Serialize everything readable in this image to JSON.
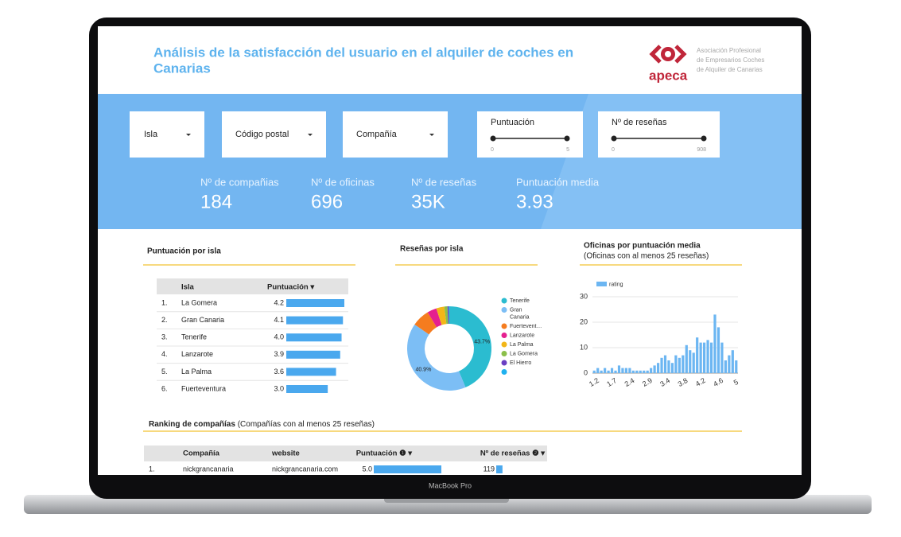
{
  "device": "MacBook Pro",
  "header": {
    "title_lines": [
      "Análisis de la satisfacción del usuario en el alquiler de coches en",
      "Canarias"
    ],
    "logo_text": "apeca",
    "org_lines": [
      "Asociación Profesional",
      "de Empresarios Coches",
      "de Alquiler de Canarias"
    ]
  },
  "filters": [
    "Isla",
    "Código postal",
    "Compañía"
  ],
  "sliders": [
    {
      "label": "Puntuación",
      "min": 0,
      "max": 5
    },
    {
      "label": "Nº de reseñas",
      "min": 0,
      "max": 908
    }
  ],
  "kpis": [
    {
      "label": "Nº de compañias",
      "value": 184
    },
    {
      "label": "Nº de oficinas",
      "value": 696
    },
    {
      "label": "Nº de reseñas",
      "value": "35K"
    },
    {
      "label": "Puntuación media",
      "value": 3.93
    }
  ],
  "island_table": {
    "title": "Puntuación por isla",
    "columns": [
      "Isla",
      "Puntuación ▾"
    ],
    "rows": [
      {
        "rank": "1.",
        "name": "La Gomera",
        "value": 4.2
      },
      {
        "rank": "2.",
        "name": "Gran Canaria",
        "value": 4.1
      },
      {
        "rank": "3.",
        "name": "Tenerife",
        "value": {
          "value": 4,
          "label": "4.0"
        }
      },
      {
        "rank": "4.",
        "name": "Lanzarote",
        "value": 3.9
      },
      {
        "rank": "5.",
        "name": "La Palma",
        "value": 3.6
      },
      {
        "rank": "6.",
        "name": "Fuerteventura",
        "value": {
          "value": 3,
          "label": "3.0"
        }
      }
    ]
  },
  "donut": {
    "type": "pie",
    "title": "Reseñas por isla",
    "categories": [
      "Tenerife",
      "Gran Canaria",
      "Fuertevent…",
      "Lanzarote",
      "La Palma",
      "La Gomera",
      "El Hierro",
      null
    ],
    "values": [
      43.7,
      40.9,
      6.8,
      3.6,
      3.1,
      1.2,
      0.5,
      0.2
    ],
    "value_labels": [
      "43.7%",
      "40.9%",
      null,
      null,
      null,
      null,
      null,
      null
    ],
    "colors": [
      "#2bbcd0",
      "#7cbef5",
      "#f57c1f",
      "#e5208f",
      "#f2b618",
      "#8bbf4a",
      "#6a3fc2",
      "#1fb1ef"
    ]
  },
  "chart_data": {
    "type": "bar",
    "title": "Oficinas por puntuación media",
    "subtitle": "(Oficinas con al menos 25 reseñas)",
    "categories": [
      "1.2",
      null,
      null,
      null,
      null,
      "1.7",
      null,
      null,
      null,
      null,
      "2.4",
      null,
      null,
      null,
      null,
      "2.9",
      null,
      null,
      null,
      null,
      "3.4",
      null,
      null,
      null,
      null,
      "3.8",
      null,
      null,
      null,
      null,
      "4.2",
      null,
      null,
      null,
      null,
      "4.6",
      null,
      null,
      null,
      null,
      "5"
    ],
    "series": [
      {
        "name": "rating",
        "color": "#6cb6f2",
        "values": [
          1,
          2,
          1,
          2,
          1,
          2,
          1,
          3,
          2,
          2,
          2,
          1,
          1,
          1,
          1,
          1,
          2,
          3,
          4,
          6,
          7,
          5,
          4,
          7,
          6,
          7,
          11,
          9,
          8,
          14,
          12,
          12,
          13,
          12,
          23,
          18,
          12,
          5,
          7,
          9,
          5
        ]
      }
    ],
    "ylim": [
      0,
      30
    ],
    "yticks": [
      0,
      10,
      20,
      30
    ],
    "grid": true
  },
  "ranking": {
    "title": "Ranking de compañías",
    "subtitle": " (Compañías con al menos 25 reseñas)",
    "columns": [
      "Compañía",
      "website",
      "Puntuación ❶ ▾",
      "Nº de reseñas ❷ ▾"
    ],
    "rows": [
      {
        "rank": "1.",
        "company": "nickgrancanaria",
        "website": "nickgrancanaria.com",
        "score": {
          "value": 5,
          "label": "5.0"
        },
        "reviews": 119
      }
    ]
  }
}
